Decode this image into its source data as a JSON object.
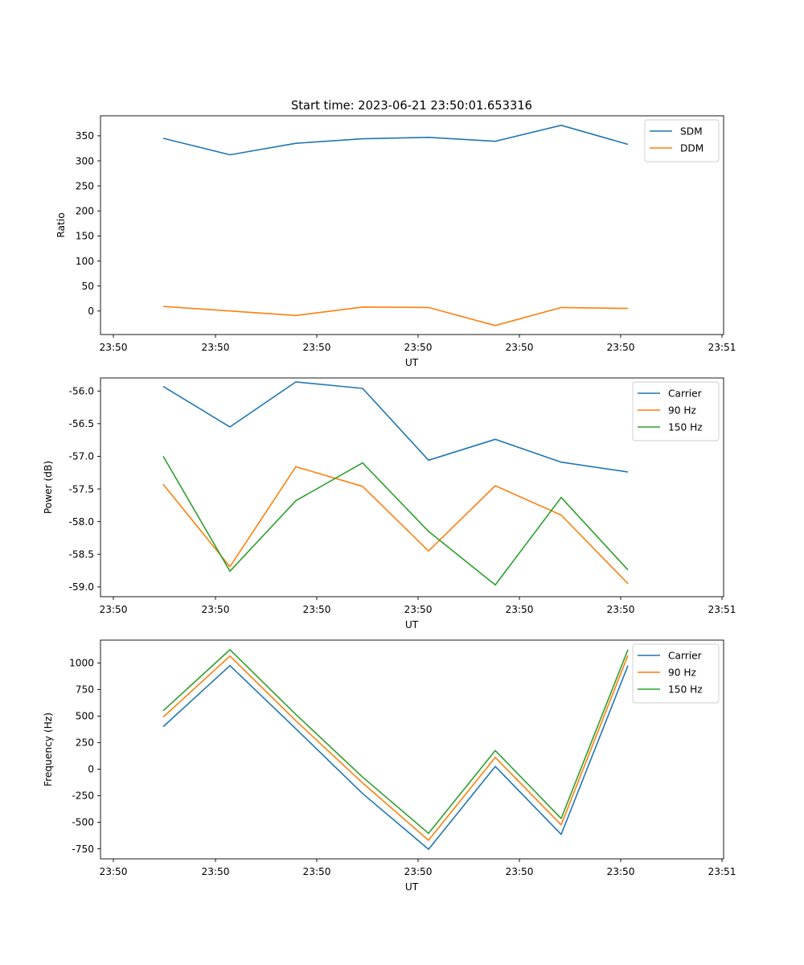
{
  "chart_data": [
    {
      "type": "line",
      "title": "Start time: 2023-06-21 23:50:01.653316",
      "xlabel": "UT",
      "ylabel": "Ratio",
      "xticks": [
        "23:50",
        "23:50",
        "23:50",
        "23:50",
        "23:50",
        "23:50",
        "23:50",
        "23:51"
      ],
      "xtick_values": [
        0,
        1,
        2,
        3,
        4,
        5,
        6,
        6
      ],
      "yticks": [
        0,
        50,
        100,
        150,
        200,
        250,
        300,
        350
      ],
      "ylim": [
        -47,
        390
      ],
      "grid": false,
      "legend": "upper-right",
      "series": [
        {
          "name": "SDM",
          "color": "#1f77b4",
          "x": [
            1,
            2,
            3,
            4,
            5,
            6,
            7,
            8
          ],
          "values": [
            345,
            312,
            335,
            344,
            347,
            339,
            371,
            333
          ]
        },
        {
          "name": "DDM",
          "color": "#ff7f0e",
          "x": [
            1,
            2,
            3,
            4,
            5,
            6,
            7,
            8
          ],
          "values": [
            9,
            0,
            -9,
            8,
            7,
            -29,
            7,
            5
          ]
        }
      ]
    },
    {
      "type": "line",
      "title": "",
      "xlabel": "UT",
      "ylabel": "Power (dB)",
      "xticks": [
        "23:50",
        "23:50",
        "23:50",
        "23:50",
        "23:50",
        "23:50",
        "23:50",
        "23:51"
      ],
      "yticks": [
        "-59.0",
        "-58.5",
        "-58.0",
        "-57.5",
        "-57.0",
        "-56.5",
        "-56.0"
      ],
      "ylim": [
        -59.15,
        -55.8
      ],
      "grid": false,
      "legend": "upper-right",
      "series": [
        {
          "name": "Carrier",
          "color": "#1f77b4",
          "x": [
            1,
            2,
            3,
            4,
            5,
            6,
            7,
            8
          ],
          "values": [
            -55.93,
            -56.55,
            -55.86,
            -55.96,
            -57.06,
            -56.74,
            -57.09,
            -57.24
          ]
        },
        {
          "name": "90 Hz",
          "color": "#ff7f0e",
          "x": [
            1,
            2,
            3,
            4,
            5,
            6,
            7,
            8
          ],
          "values": [
            -57.43,
            -58.69,
            -57.16,
            -57.46,
            -58.45,
            -57.45,
            -57.9,
            -58.95
          ]
        },
        {
          "name": "150 Hz",
          "color": "#2ca02c",
          "x": [
            1,
            2,
            3,
            4,
            5,
            6,
            7,
            8
          ],
          "values": [
            -57.0,
            -58.76,
            -57.68,
            -57.1,
            -58.15,
            -58.97,
            -57.63,
            -58.74
          ]
        }
      ]
    },
    {
      "type": "line",
      "title": "",
      "xlabel": "UT",
      "ylabel": "Frequency (Hz)",
      "xticks": [
        "23:50",
        "23:50",
        "23:50",
        "23:50",
        "23:50",
        "23:50",
        "23:50",
        "23:51"
      ],
      "yticks": [
        -750,
        -500,
        -250,
        0,
        250,
        500,
        750,
        1000
      ],
      "ylim": [
        -845,
        1215
      ],
      "grid": false,
      "legend": "upper-right",
      "series": [
        {
          "name": "Carrier",
          "color": "#1f77b4",
          "x": [
            1,
            2,
            3,
            4,
            5,
            6,
            7,
            8
          ],
          "values": [
            400,
            975,
            380,
            -230,
            -755,
            25,
            -615,
            975
          ]
        },
        {
          "name": "90 Hz",
          "color": "#ff7f0e",
          "x": [
            1,
            2,
            3,
            4,
            5,
            6,
            7,
            8
          ],
          "values": [
            490,
            1065,
            455,
            -130,
            -670,
            110,
            -525,
            1070
          ]
        },
        {
          "name": "150 Hz",
          "color": "#2ca02c",
          "x": [
            1,
            2,
            3,
            4,
            5,
            6,
            7,
            8
          ],
          "values": [
            550,
            1125,
            515,
            -75,
            -605,
            175,
            -465,
            1125
          ]
        }
      ]
    }
  ]
}
